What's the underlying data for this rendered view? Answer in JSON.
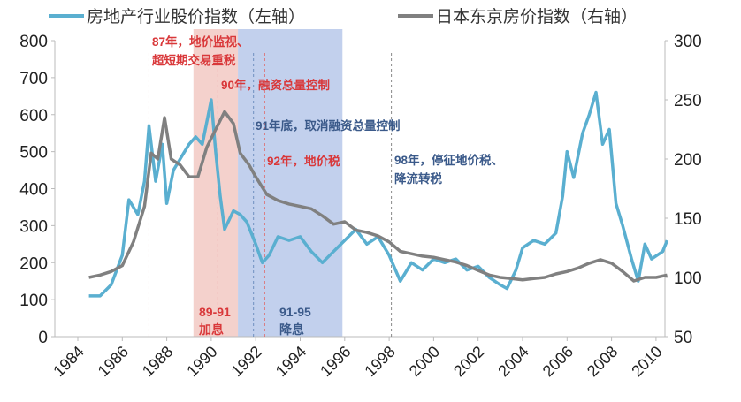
{
  "chart_data": {
    "type": "line",
    "legend_placement": "top",
    "grid": false,
    "x_ticks": [
      "1984",
      "1986",
      "1988",
      "1990",
      "1992",
      "1994",
      "1996",
      "1998",
      "2000",
      "2002",
      "2004",
      "2006",
      "2008",
      "2010"
    ],
    "xlim": [
      1984,
      2010.5
    ],
    "ylim_left": [
      0,
      800
    ],
    "ylim_right": [
      50,
      300
    ],
    "y_ticks_left": [
      "0",
      "100",
      "200",
      "300",
      "400",
      "500",
      "600",
      "700",
      "800"
    ],
    "y_ticks_right": [
      "50",
      "100",
      "150",
      "200",
      "250",
      "300"
    ],
    "series": [
      {
        "name": "房地产行业股价指数（左轴）",
        "axis": "left",
        "color": "#5aafd0",
        "x": [
          1984.5,
          1985,
          1985.5,
          1986,
          1986.3,
          1986.7,
          1987,
          1987.2,
          1987.5,
          1987.8,
          1988,
          1988.3,
          1988.6,
          1989,
          1989.3,
          1989.6,
          1990,
          1990.2,
          1990.4,
          1990.6,
          1991,
          1991.3,
          1991.6,
          1992,
          1992.3,
          1992.6,
          1993,
          1993.5,
          1994,
          1994.5,
          1995,
          1995.5,
          1996,
          1996.5,
          1997,
          1997.5,
          1998,
          1998.5,
          1999,
          1999.5,
          2000,
          2000.5,
          2001,
          2001.5,
          2002,
          2002.5,
          2003,
          2003.3,
          2003.7,
          2004,
          2004.5,
          2005,
          2005.5,
          2005.8,
          2006,
          2006.3,
          2006.7,
          2007,
          2007.3,
          2007.6,
          2007.9,
          2008.2,
          2008.5,
          2008.9,
          2009.2,
          2009.5,
          2009.8,
          2010.3,
          2010.5
        ],
        "y": [
          110,
          110,
          140,
          220,
          370,
          330,
          420,
          570,
          420,
          520,
          360,
          450,
          480,
          520,
          540,
          520,
          640,
          500,
          380,
          290,
          340,
          330,
          310,
          250,
          200,
          220,
          270,
          260,
          270,
          230,
          200,
          230,
          260,
          290,
          250,
          270,
          220,
          150,
          200,
          180,
          210,
          200,
          210,
          180,
          190,
          160,
          140,
          130,
          180,
          240,
          260,
          250,
          280,
          380,
          500,
          430,
          550,
          600,
          660,
          520,
          560,
          360,
          300,
          210,
          150,
          250,
          210,
          230,
          260
        ]
      },
      {
        "name": "日本东京房价指数（右轴）",
        "axis": "right",
        "color": "#808080",
        "x": [
          1984.5,
          1985,
          1985.5,
          1986,
          1986.5,
          1987,
          1987.3,
          1987.6,
          1987.9,
          1988.2,
          1988.6,
          1989,
          1989.4,
          1989.8,
          1990.2,
          1990.6,
          1991,
          1991.3,
          1991.7,
          1992,
          1992.5,
          1993,
          1993.5,
          1994,
          1994.5,
          1995,
          1995.5,
          1996,
          1996.5,
          1997,
          1997.5,
          1998,
          1998.5,
          1999,
          1999.5,
          2000,
          2000.5,
          2001,
          2001.5,
          2002,
          2002.5,
          2003,
          2003.5,
          2004,
          2004.5,
          2005,
          2005.5,
          2006,
          2006.5,
          2007,
          2007.5,
          2008,
          2008.5,
          2009,
          2009.5,
          2010,
          2010.5
        ],
        "y": [
          100,
          102,
          105,
          110,
          130,
          160,
          205,
          200,
          235,
          200,
          195,
          185,
          185,
          210,
          225,
          240,
          230,
          205,
          195,
          185,
          170,
          165,
          162,
          160,
          158,
          152,
          145,
          147,
          140,
          138,
          135,
          130,
          122,
          120,
          118,
          117,
          115,
          113,
          110,
          106,
          102,
          100,
          99,
          98,
          99,
          100,
          103,
          105,
          108,
          112,
          115,
          112,
          105,
          97,
          100,
          100,
          102
        ]
      }
    ],
    "shaded_periods": [
      {
        "from": 1989.2,
        "to": 1991.2,
        "color": "#f2c9c3",
        "label_line1": "89-91",
        "label_line2": "加息",
        "label_color": "#d9383a"
      },
      {
        "from": 1991.2,
        "to": 1995.9,
        "color": "#b7c8ea",
        "label_line1": "91-95",
        "label_line2": "降息",
        "label_color": "#3b5a8a"
      }
    ],
    "annotations": [
      {
        "x": 1987.2,
        "line_color": "#e06666",
        "text_color": "#d9383a",
        "lines": [
          "87年，地价监视、",
          "超短期交易重税"
        ]
      },
      {
        "x": 1990.3,
        "line_color": "#e06666",
        "text_color": "#d9383a",
        "lines": [
          "90年，融资总量控制"
        ]
      },
      {
        "x": 1991.9,
        "line_color": "#6f8fbf",
        "text_color": "#3b5a8a",
        "lines": [
          "91年底，取消融资总量控制"
        ]
      },
      {
        "x": 1992.4,
        "line_color": "#e06666",
        "text_color": "#d9383a",
        "lines": [
          "92年，地价税"
        ]
      },
      {
        "x": 1998.1,
        "line_color": "#888888",
        "text_color": "#3b5a8a",
        "lines": [
          "98年，停征地价税、",
          "降流转税"
        ]
      }
    ]
  }
}
